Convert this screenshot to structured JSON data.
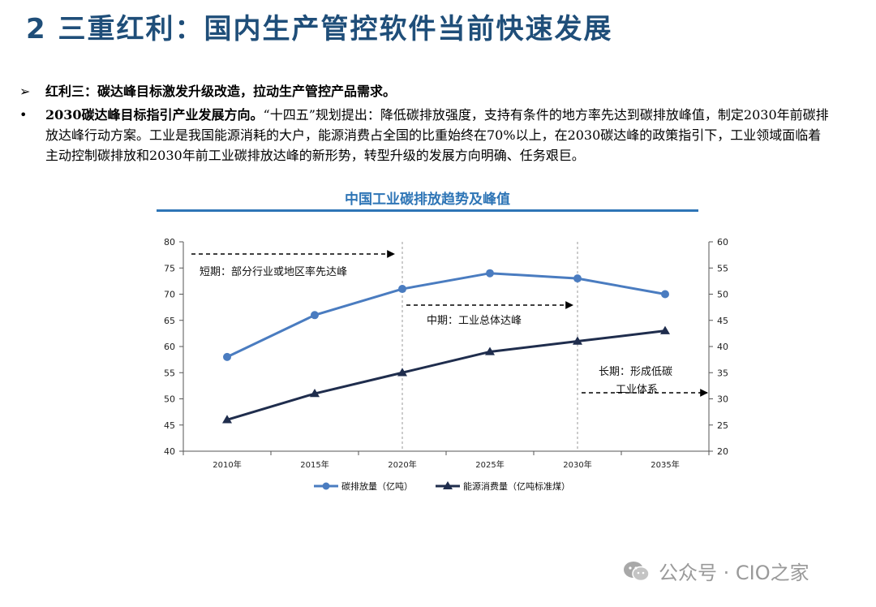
{
  "header": {
    "title": "2 三重红利：国内生产管控软件当前快速发展"
  },
  "bullets": [
    {
      "mark": "➢",
      "bold": "红利三：碳达峰目标激发升级改造，拉动生产管控产品需求。",
      "text": ""
    },
    {
      "mark": "•",
      "bold": "2030碳达峰目标指引产业发展方向。",
      "text": "“十四五”规划提出：降低碳排放强度，支持有条件的地方率先达到碳排放峰值，制定2030年前碳排放达峰行动方案。工业是我国能源消耗的大户，能源消费占全国的比重始终在70%以上，在2030碳达峰的政策指引下，工业领域面临着主动控制碳排放和2030年前工业碳排放达峰的新形势，转型升级的发展方向明确、任务艰巨。"
    }
  ],
  "chart_data": {
    "type": "line",
    "title": "中国工业碳排放趋势及峰值",
    "categories": [
      "2010年",
      "2015年",
      "2020年",
      "2025年",
      "2030年",
      "2035年"
    ],
    "series": [
      {
        "name": "碳排放量（亿吨）",
        "axis": "left",
        "color": "#4a7cc0",
        "marker": "circle",
        "values": [
          58,
          66,
          71,
          74,
          73,
          70
        ]
      },
      {
        "name": "能源消费量（亿吨标准煤）",
        "axis": "right",
        "color": "#1f2d4d",
        "marker": "triangle",
        "values": [
          26,
          31,
          35,
          39,
          41,
          43
        ]
      }
    ],
    "y_left": {
      "min": 40,
      "max": 80,
      "ticks": [
        "40",
        "45",
        "50",
        "55",
        "60",
        "65",
        "70",
        "75",
        "80"
      ]
    },
    "y_right": {
      "min": 20,
      "max": 60,
      "ticks": [
        "20",
        "25",
        "30",
        "35",
        "40",
        "45",
        "50",
        "55",
        "60"
      ]
    },
    "grid": false,
    "legend_position": "bottom",
    "annotations": [
      {
        "text": "短期：部分行业或地区率先达峰"
      },
      {
        "text": "中期：工业总体达峰"
      },
      {
        "text_line1": "长期：形成低碳",
        "text_line2": "工业体系"
      }
    ]
  },
  "watermark": {
    "text": "公众号 · CIO之家"
  }
}
